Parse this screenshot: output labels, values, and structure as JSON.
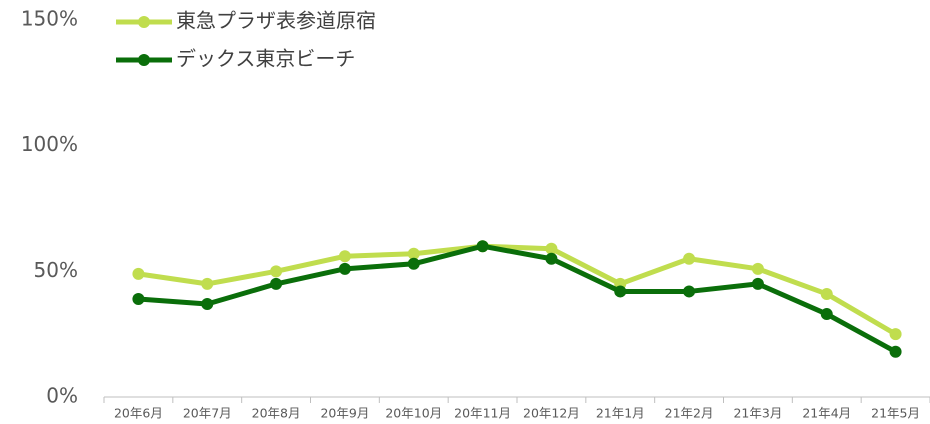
{
  "chart_data": {
    "type": "line",
    "categories": [
      "20年6月",
      "20年7月",
      "20年8月",
      "20年9月",
      "20年10月",
      "20年11月",
      "20年12月",
      "21年1月",
      "21年2月",
      "21年3月",
      "21年4月",
      "21年5月"
    ],
    "series": [
      {
        "name": "東急プラザ表参道原宿",
        "color": "#c0dd4e",
        "values": [
          49,
          45,
          50,
          56,
          57,
          60,
          59,
          45,
          55,
          51,
          41,
          25
        ]
      },
      {
        "name": "デックス東京ビーチ",
        "color": "#0a6e0a",
        "values": [
          39,
          37,
          45,
          51,
          53,
          60,
          55,
          42,
          42,
          45,
          33,
          18
        ]
      }
    ],
    "ylim": [
      0,
      150
    ],
    "yticks": [
      {
        "value": 0,
        "label": "0%"
      },
      {
        "value": 50,
        "label": "50%"
      },
      {
        "value": 100,
        "label": "100%"
      },
      {
        "value": 150,
        "label": "150%"
      }
    ],
    "grid": false,
    "legend": "top-left"
  }
}
